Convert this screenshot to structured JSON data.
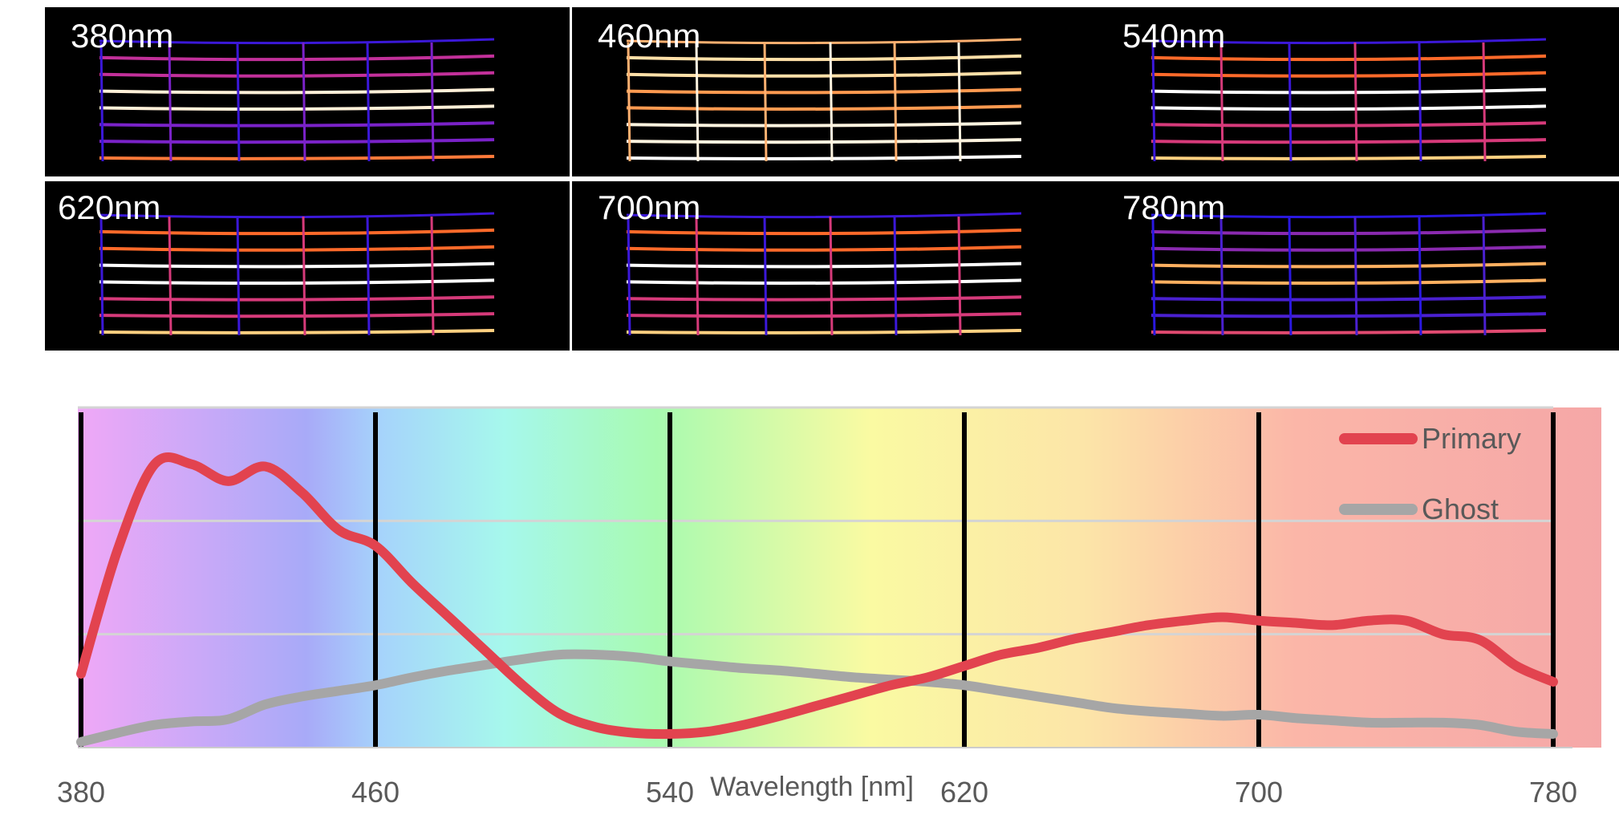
{
  "panels": [
    {
      "label": "380nm",
      "palette": "violet"
    },
    {
      "label": "460nm",
      "palette": "bright"
    },
    {
      "label": "540nm",
      "palette": "warm"
    },
    {
      "label": "620nm",
      "palette": "warm"
    },
    {
      "label": "700nm",
      "palette": "warm"
    },
    {
      "label": "780nm",
      "palette": "cool"
    }
  ],
  "chart_data": {
    "type": "line",
    "xlabel": "Wavelength [nm]",
    "ylabel": "",
    "xlim": [
      380,
      780
    ],
    "ylim": [
      0,
      3
    ],
    "grid": "horizontal",
    "x_ticks": [
      380,
      460,
      540,
      620,
      700,
      780
    ],
    "x_tick_labels": [
      "380",
      "460",
      "540",
      "620",
      "700",
      "780"
    ],
    "legend_position": "top-right",
    "background": "visible-spectrum gradient",
    "series": [
      {
        "name": "Primary",
        "color": "#e2434f",
        "x": [
          380,
          390,
          400,
          410,
          420,
          430,
          440,
          450,
          460,
          470,
          480,
          490,
          500,
          510,
          520,
          530,
          540,
          550,
          560,
          570,
          580,
          590,
          600,
          610,
          620,
          630,
          640,
          650,
          660,
          670,
          680,
          690,
          700,
          710,
          720,
          730,
          740,
          750,
          760,
          770,
          780
        ],
        "y": [
          0.65,
          1.75,
          2.5,
          2.5,
          2.35,
          2.48,
          2.25,
          1.92,
          1.78,
          1.45,
          1.15,
          0.85,
          0.55,
          0.3,
          0.18,
          0.13,
          0.12,
          0.14,
          0.2,
          0.28,
          0.37,
          0.46,
          0.55,
          0.62,
          0.72,
          0.82,
          0.88,
          0.96,
          1.02,
          1.08,
          1.12,
          1.15,
          1.12,
          1.1,
          1.08,
          1.12,
          1.12,
          1.0,
          0.95,
          0.72,
          0.58
        ]
      },
      {
        "name": "Ghost",
        "color": "#a6a6a6",
        "x": [
          380,
          390,
          400,
          410,
          420,
          430,
          440,
          450,
          460,
          470,
          480,
          490,
          500,
          510,
          520,
          530,
          540,
          550,
          560,
          570,
          580,
          590,
          600,
          610,
          620,
          630,
          640,
          650,
          660,
          670,
          680,
          690,
          700,
          710,
          720,
          730,
          740,
          750,
          760,
          770,
          780
        ],
        "y": [
          0.05,
          0.13,
          0.2,
          0.23,
          0.25,
          0.38,
          0.45,
          0.5,
          0.55,
          0.62,
          0.68,
          0.73,
          0.78,
          0.82,
          0.82,
          0.8,
          0.76,
          0.73,
          0.7,
          0.68,
          0.65,
          0.62,
          0.6,
          0.58,
          0.55,
          0.5,
          0.45,
          0.4,
          0.35,
          0.32,
          0.3,
          0.28,
          0.29,
          0.26,
          0.24,
          0.22,
          0.22,
          0.22,
          0.2,
          0.14,
          0.12
        ]
      }
    ]
  }
}
